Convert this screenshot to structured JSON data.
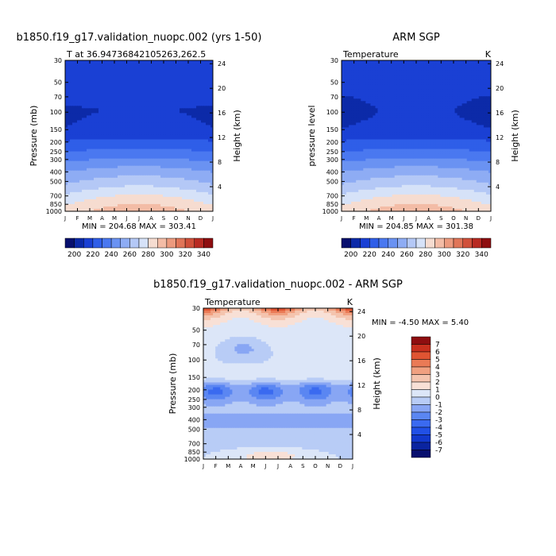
{
  "chart_data": [
    {
      "type": "heatmap",
      "title": "b1850.f19_g17.validation_nuopc.002 (yrs 1-50)",
      "subtitle_left": "T at 36.94736842105263,262.5",
      "subtitle_right": "",
      "ylabel": "Pressure (mb)",
      "ylabel_right": "Height (km)",
      "x": [
        "J",
        "F",
        "M",
        "A",
        "M",
        "J",
        "J",
        "A",
        "S",
        "O",
        "N",
        "D",
        "J"
      ],
      "y_ticks": [
        "30",
        "50",
        "70",
        "100",
        "150",
        "200",
        "250",
        "300",
        "400",
        "500",
        "700",
        "850",
        "1000"
      ],
      "y_values": [
        30,
        50,
        70,
        100,
        150,
        200,
        250,
        300,
        400,
        500,
        700,
        850,
        1000
      ],
      "right_ticks": [
        "24",
        "20",
        "16",
        "12",
        "8",
        "4"
      ],
      "stats": "MIN = 204.68  MAX = 303.41",
      "cbar_labels": [
        "200",
        "220",
        "240",
        "260",
        "280",
        "300",
        "320",
        "340"
      ],
      "cbar_orientation": "horizontal",
      "anom": false,
      "min": 204.68,
      "max": 303.41
    },
    {
      "type": "heatmap",
      "title": "ARM SGP",
      "subtitle_left": "Temperature",
      "subtitle_right": "K",
      "ylabel": "pressure level",
      "ylabel_right": "Height (km)",
      "x": [
        "J",
        "F",
        "M",
        "A",
        "M",
        "J",
        "J",
        "A",
        "S",
        "O",
        "N",
        "D",
        "J"
      ],
      "y_ticks": [
        "30",
        "50",
        "70",
        "100",
        "150",
        "200",
        "250",
        "300",
        "400",
        "500",
        "700",
        "850",
        "1000"
      ],
      "y_values": [
        30,
        50,
        70,
        100,
        150,
        200,
        250,
        300,
        400,
        500,
        700,
        850,
        1000
      ],
      "right_ticks": [
        "24",
        "20",
        "16",
        "12",
        "8",
        "4"
      ],
      "stats": "MIN = 204.85  MAX = 301.38",
      "cbar_labels": [
        "200",
        "220",
        "240",
        "260",
        "280",
        "300",
        "320",
        "340"
      ],
      "cbar_orientation": "horizontal",
      "anom": false,
      "min": 204.85,
      "max": 301.38
    },
    {
      "type": "heatmap",
      "title": "b1850.f19_g17.validation_nuopc.002 - ARM SGP",
      "subtitle_left": "Temperature",
      "subtitle_right": "K",
      "ylabel": "Pressure (mb)",
      "ylabel_right": "Height (km)",
      "x": [
        "J",
        "F",
        "M",
        "A",
        "M",
        "J",
        "J",
        "A",
        "S",
        "O",
        "N",
        "D",
        "J"
      ],
      "y_ticks": [
        "30",
        "50",
        "70",
        "100",
        "150",
        "200",
        "250",
        "300",
        "400",
        "500",
        "700",
        "850",
        "1000"
      ],
      "y_values": [
        30,
        50,
        70,
        100,
        150,
        200,
        250,
        300,
        400,
        500,
        700,
        850,
        1000
      ],
      "right_ticks": [
        "24",
        "20",
        "16",
        "12",
        "8",
        "4"
      ],
      "stats": "MIN =  -4.50 MAX =   5.40",
      "cbar_labels": [
        "7",
        "6",
        "5",
        "4",
        "3",
        "2",
        "1",
        "0",
        "-1",
        "-2",
        "-3",
        "-4",
        "-5",
        "-6",
        "-7"
      ],
      "cbar_orientation": "vertical",
      "anom": true,
      "min": -4.5,
      "max": 5.4
    }
  ],
  "colors": {
    "temperature_scale": [
      "#08106e",
      "#0c2aa8",
      "#1a40d4",
      "#2f5ee8",
      "#4a78f0",
      "#6a92f2",
      "#8eacf4",
      "#b4c8f6",
      "#d6e2f8",
      "#f6dcd0",
      "#f3bca6",
      "#ec9a7e",
      "#e07558",
      "#d0503a",
      "#b82a22",
      "#8e0e10"
    ],
    "anomaly_scale": [
      "#08106e",
      "#0a24a0",
      "#1238cc",
      "#2150e6",
      "#3a6af0",
      "#5a86f2",
      "#88a6f4",
      "#b8ccf6",
      "#dce6f8",
      "#f8e0d6",
      "#f4c4ae",
      "#f0a080",
      "#ea7a56",
      "#e05432",
      "#c8301e",
      "#8e0e10"
    ]
  }
}
